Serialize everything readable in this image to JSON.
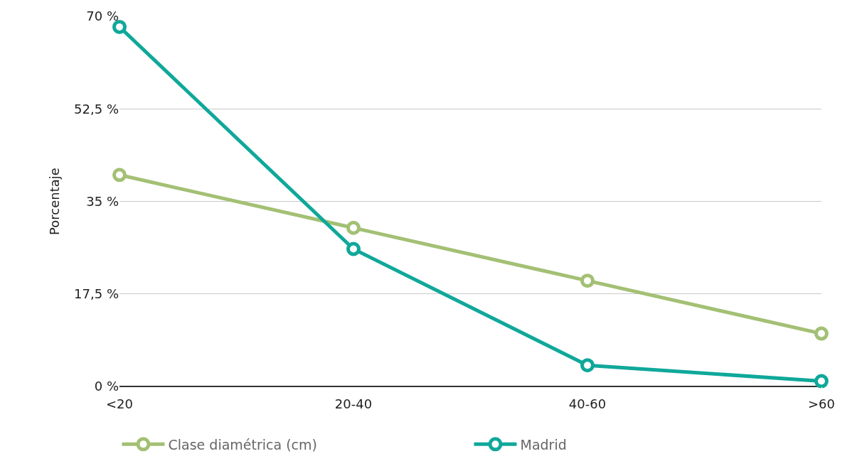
{
  "chart_data": {
    "type": "line",
    "ylabel": "Porcentaje",
    "categories": [
      "<20",
      "20-40",
      "40-60",
      ">60"
    ],
    "series": [
      {
        "name": "Clase diamétrica (cm)",
        "color": "#a3c074",
        "values": [
          40,
          30,
          20,
          10
        ]
      },
      {
        "name": "Madrid",
        "color": "#0fa89a",
        "values": [
          68,
          26,
          4,
          1
        ]
      }
    ],
    "ylim": [
      0,
      70
    ],
    "yticks": [
      {
        "value": 0,
        "label": "0 %"
      },
      {
        "value": 17.5,
        "label": "17,5 %"
      },
      {
        "value": 35,
        "label": "35 %"
      },
      {
        "value": 52.5,
        "label": "52,5 %"
      },
      {
        "value": 70,
        "label": "70 %"
      }
    ],
    "grid": "y",
    "legend": "bottom",
    "marker": "circle",
    "line_style": "solid"
  }
}
